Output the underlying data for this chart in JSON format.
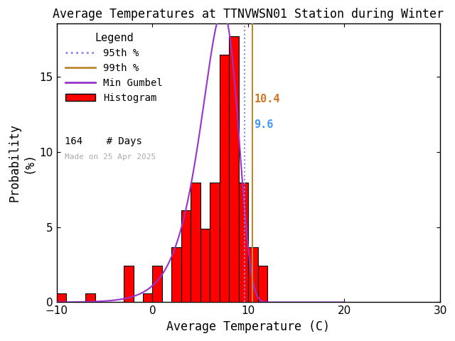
{
  "title": "Average Temperatures at TTNVWSN01 Station during Winter",
  "xlabel": "Average Temperature (C)",
  "ylabel": "Probability\n(%)",
  "xlim": [
    -10,
    30
  ],
  "ylim": [
    0,
    18.5
  ],
  "yticks": [
    0,
    5,
    10,
    15
  ],
  "xticks": [
    -10,
    0,
    10,
    20,
    30
  ],
  "bin_edges": [
    -10,
    -9,
    -8,
    -7,
    -6,
    -5,
    -4,
    -3,
    -2,
    -1,
    0,
    1,
    2,
    3,
    4,
    5,
    6,
    7,
    8,
    9,
    10,
    11,
    12,
    13,
    14
  ],
  "bin_heights": [
    0.61,
    0.0,
    0.0,
    0.61,
    0.0,
    0.0,
    0.0,
    2.44,
    0.0,
    0.61,
    2.44,
    0.0,
    3.66,
    6.1,
    7.93,
    4.88,
    7.93,
    16.46,
    17.68,
    7.93,
    3.66,
    2.44,
    0.0,
    0.0
  ],
  "bar_color": "#ff0000",
  "bar_edgecolor": "#000000",
  "gumbel_mu": 7.3,
  "gumbel_beta": 1.9,
  "percentile_95": 9.6,
  "percentile_99": 10.4,
  "n_days": 164,
  "made_on": "Made on 25 Apr 2025",
  "line_95_color": "#8888ff",
  "line_99_color": "#bb8833",
  "gumbel_color": "#9933cc",
  "bg_color": "#ffffff",
  "annotation_95_color": "#4499ff",
  "annotation_99_color": "#cc7722",
  "legend_title_fontsize": 11,
  "legend_fontsize": 10,
  "tick_labelsize": 11,
  "axis_labelsize": 12,
  "title_fontsize": 12
}
